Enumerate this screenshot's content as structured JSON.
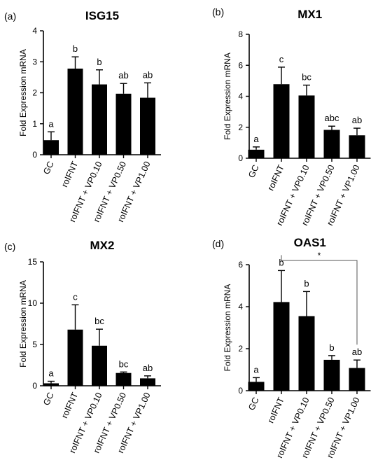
{
  "chart_data": [
    {
      "type": "bar",
      "panel": "(a)",
      "title": "ISG15",
      "ylabel": "Fold Expression mRNA",
      "categories": [
        "GC",
        "roIFNT",
        "roIFNT + VP0.10",
        "roIFNT + VP0.50",
        "roIFNT + VP1.00"
      ],
      "values": [
        0.47,
        2.78,
        2.27,
        1.97,
        1.84
      ],
      "errors": [
        0.27,
        0.38,
        0.47,
        0.33,
        0.48
      ],
      "letters": [
        "a",
        "b",
        "b",
        "ab",
        "ab"
      ],
      "ylim": [
        0,
        4
      ],
      "yticks": [
        0,
        1,
        2,
        3,
        4
      ]
    },
    {
      "type": "bar",
      "panel": "(b)",
      "title": "MX1",
      "ylabel": "Fold Expression mRNA",
      "categories": [
        "GC",
        "roIFNT",
        "roIFNT + VP0.10",
        "roIFNT + VP0.50",
        "roIFNT + VP1.00"
      ],
      "values": [
        0.55,
        4.78,
        4.05,
        1.83,
        1.48
      ],
      "errors": [
        0.18,
        1.1,
        0.67,
        0.24,
        0.46
      ],
      "letters": [
        "a",
        "c",
        "bc",
        "abc",
        "ab"
      ],
      "ylim": [
        0,
        8
      ],
      "yticks": [
        0,
        2,
        4,
        6,
        8
      ]
    },
    {
      "type": "bar",
      "panel": "(c)",
      "title": "MX2",
      "ylabel": "Fold Expression mRNA",
      "categories": [
        "GC",
        "roIFNT",
        "roIFNT + VP0.10",
        "roIFNT + VP0.50",
        "roIFNT + VP1.00"
      ],
      "values": [
        0.3,
        6.8,
        4.85,
        1.55,
        0.9
      ],
      "errors": [
        0.25,
        3.0,
        2.0,
        0.12,
        0.3
      ],
      "letters": [
        "a",
        "c",
        "bc",
        "bc",
        "ab"
      ],
      "ylim": [
        0,
        15
      ],
      "yticks": [
        0,
        5,
        10,
        15
      ]
    },
    {
      "type": "bar",
      "panel": "(d)",
      "title": "OAS1",
      "ylabel": "Fold Expression mRNA",
      "categories": [
        "GC",
        "roIFNT",
        "roIFNT + VP0.10",
        "roIFNT + VP0.50",
        "roIFNT + VP1.00"
      ],
      "values": [
        0.42,
        4.22,
        3.55,
        1.47,
        1.08
      ],
      "errors": [
        0.2,
        1.5,
        1.17,
        0.2,
        0.38
      ],
      "letters": [
        "a",
        "b",
        "b",
        "b",
        "ab"
      ],
      "ylim": [
        0,
        6
      ],
      "yticks": [
        0,
        2,
        4,
        6
      ],
      "significance": {
        "from": 1,
        "to": 4,
        "label": "*"
      }
    }
  ]
}
